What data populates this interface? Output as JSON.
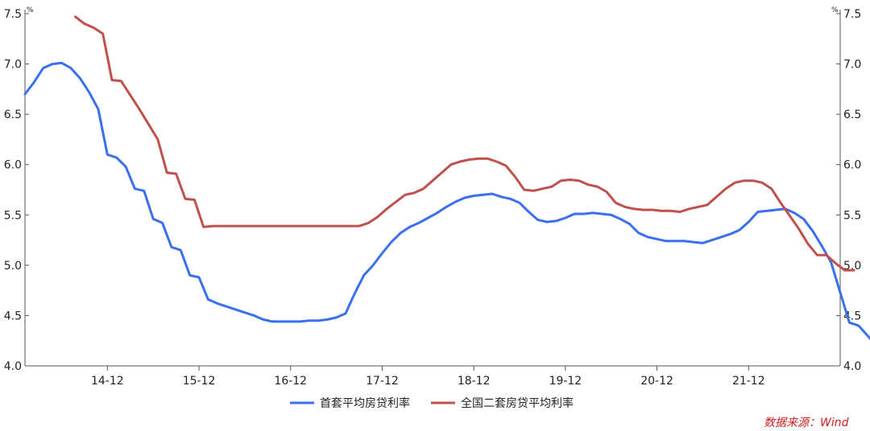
{
  "chart_data": {
    "type": "line",
    "y_unit_left": "%",
    "y_unit_right": "%",
    "ylim": [
      4.0,
      7.5
    ],
    "yticks": [
      "4.0",
      "4.5",
      "5.0",
      "5.5",
      "6.0",
      "6.5",
      "7.0",
      "7.5"
    ],
    "xlim": [
      0,
      89
    ],
    "xticks": [
      {
        "label": "14-12",
        "x": 9
      },
      {
        "label": "15-12",
        "x": 19
      },
      {
        "label": "16-12",
        "x": 29
      },
      {
        "label": "17-12",
        "x": 39
      },
      {
        "label": "18-12",
        "x": 49
      },
      {
        "label": "19-12",
        "x": 59
      },
      {
        "label": "20-12",
        "x": 69
      },
      {
        "label": "21-12",
        "x": 79
      }
    ],
    "series": [
      {
        "name": "首套平均房贷利率",
        "color": "#3a6ff0",
        "start": 0,
        "values": [
          6.7,
          6.82,
          6.96,
          7.0,
          7.01,
          6.96,
          6.86,
          6.72,
          6.55,
          6.1,
          6.07,
          5.98,
          5.76,
          5.74,
          5.46,
          5.42,
          5.18,
          5.15,
          4.9,
          4.88,
          4.66,
          4.62,
          4.59,
          4.56,
          4.53,
          4.5,
          4.46,
          4.44,
          4.44,
          4.44,
          4.44,
          4.45,
          4.45,
          4.46,
          4.48,
          4.52,
          4.72,
          4.9,
          5.0,
          5.12,
          5.23,
          5.32,
          5.38,
          5.42,
          5.47,
          5.52,
          5.58,
          5.63,
          5.67,
          5.69,
          5.7,
          5.71,
          5.68,
          5.66,
          5.62,
          5.53,
          5.45,
          5.43,
          5.44,
          5.47,
          5.51,
          5.51,
          5.52,
          5.51,
          5.5,
          5.46,
          5.41,
          5.32,
          5.28,
          5.26,
          5.24,
          5.24,
          5.24,
          5.23,
          5.22,
          5.25,
          5.28,
          5.31,
          5.35,
          5.43,
          5.53,
          5.54,
          5.55,
          5.56,
          5.52,
          5.46,
          5.34,
          5.19,
          5.03,
          4.73,
          4.43,
          4.4,
          4.3,
          4.19,
          4.16
        ]
      },
      {
        "name": "全国二套房贷平均利率",
        "color": "#c0504d",
        "start": 5.5,
        "values": [
          7.47,
          7.4,
          7.36,
          7.3,
          6.84,
          6.83,
          6.69,
          6.55,
          6.4,
          6.25,
          5.92,
          5.91,
          5.66,
          5.65,
          5.38,
          5.39,
          5.39,
          5.39,
          5.39,
          5.39,
          5.39,
          5.39,
          5.39,
          5.39,
          5.39,
          5.39,
          5.39,
          5.39,
          5.39,
          5.39,
          5.39,
          5.39,
          5.42,
          5.48,
          5.56,
          5.63,
          5.7,
          5.72,
          5.76,
          5.84,
          5.92,
          6.0,
          6.03,
          6.05,
          6.06,
          6.06,
          6.03,
          5.99,
          5.88,
          5.75,
          5.74,
          5.76,
          5.78,
          5.84,
          5.85,
          5.84,
          5.8,
          5.78,
          5.73,
          5.62,
          5.58,
          5.56,
          5.55,
          5.55,
          5.54,
          5.54,
          5.53,
          5.56,
          5.58,
          5.6,
          5.68,
          5.76,
          5.82,
          5.84,
          5.84,
          5.82,
          5.76,
          5.62,
          5.49,
          5.36,
          5.21,
          5.1,
          5.1,
          5.02,
          4.95,
          4.95
        ]
      }
    ]
  },
  "source": "数据来源：Wind"
}
